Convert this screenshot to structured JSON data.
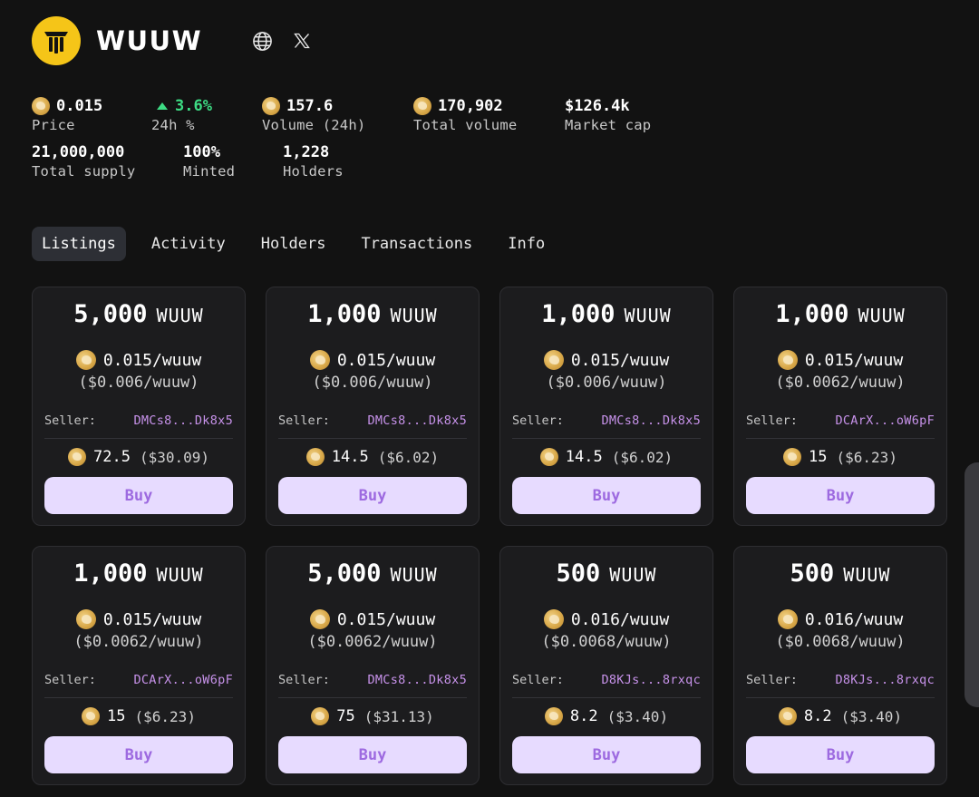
{
  "token": {
    "name": "WUUW",
    "logo_icon": "token-logo",
    "social": [
      {
        "icon": "globe-icon"
      },
      {
        "icon": "x-icon"
      }
    ]
  },
  "stats": {
    "price": {
      "value": "0.015",
      "label": "Price"
    },
    "change": {
      "value": "3.6%",
      "label": "24h %"
    },
    "volume24h": {
      "value": "157.6",
      "label": "Volume (24h)"
    },
    "total_volume": {
      "value": "170,902",
      "label": "Total volume"
    },
    "market_cap": {
      "value": "$126.4k",
      "label": "Market cap"
    },
    "total_supply": {
      "value": "21,000,000",
      "label": "Total supply"
    },
    "minted": {
      "value": "100%",
      "label": "Minted"
    },
    "holders": {
      "value": "1,228",
      "label": "Holders"
    }
  },
  "tabs": [
    {
      "label": "Listings",
      "active": true
    },
    {
      "label": "Activity",
      "active": false
    },
    {
      "label": "Holders",
      "active": false
    },
    {
      "label": "Transactions",
      "active": false
    },
    {
      "label": "Info",
      "active": false
    }
  ],
  "listing_labels": {
    "ticker": "WUUW",
    "seller": "Seller:",
    "buy": "Buy"
  },
  "listings": [
    {
      "amount": "5,000",
      "price": "0.015/wuuw",
      "usd_price": "($0.006/wuuw)",
      "seller": "DMCs8...Dk8x5",
      "total": "72.5",
      "total_usd": "($30.09)"
    },
    {
      "amount": "1,000",
      "price": "0.015/wuuw",
      "usd_price": "($0.006/wuuw)",
      "seller": "DMCs8...Dk8x5",
      "total": "14.5",
      "total_usd": "($6.02)"
    },
    {
      "amount": "1,000",
      "price": "0.015/wuuw",
      "usd_price": "($0.006/wuuw)",
      "seller": "DMCs8...Dk8x5",
      "total": "14.5",
      "total_usd": "($6.02)"
    },
    {
      "amount": "1,000",
      "price": "0.015/wuuw",
      "usd_price": "($0.0062/wuuw)",
      "seller": "DCArX...oW6pF",
      "total": "15",
      "total_usd": "($6.23)"
    },
    {
      "amount": "1,000",
      "price": "0.015/wuuw",
      "usd_price": "($0.0062/wuuw)",
      "seller": "DCArX...oW6pF",
      "total": "15",
      "total_usd": "($6.23)"
    },
    {
      "amount": "5,000",
      "price": "0.015/wuuw",
      "usd_price": "($0.0062/wuuw)",
      "seller": "DMCs8...Dk8x5",
      "total": "75",
      "total_usd": "($31.13)"
    },
    {
      "amount": "500",
      "price": "0.016/wuuw",
      "usd_price": "($0.0068/wuuw)",
      "seller": "D8KJs...8rxqc",
      "total": "8.2",
      "total_usd": "($3.40)"
    },
    {
      "amount": "500",
      "price": "0.016/wuuw",
      "usd_price": "($0.0068/wuuw)",
      "seller": "D8KJs...8rxqc",
      "total": "8.2",
      "total_usd": "($3.40)"
    }
  ],
  "colors": {
    "background": "#121212",
    "card": "#1c1c1e",
    "accent_green": "#3ddc84",
    "seller_link": "#c792ea",
    "buy_bg": "#e7dbff",
    "buy_text": "#9d6ae0",
    "logo": "#f5c518"
  }
}
